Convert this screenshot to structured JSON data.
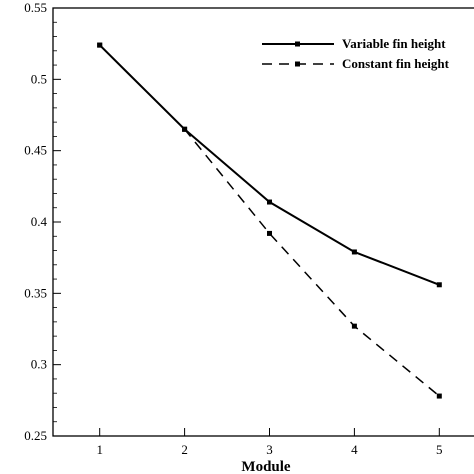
{
  "chart_data": {
    "type": "line",
    "title": "",
    "xlabel": "Module",
    "ylabel": "",
    "categories": [
      1,
      2,
      3,
      4,
      5
    ],
    "x_tick_labels": [
      "1",
      "2",
      "3",
      "4",
      "5"
    ],
    "y_tick_labels": [
      "0.25",
      "0.3",
      "0.35",
      "0.4",
      "0.45",
      "0.5",
      "0.55"
    ],
    "xlim": [
      0.45,
      5.55
    ],
    "ylim": [
      0.25,
      0.55
    ],
    "grid": false,
    "legend_position": "top-right",
    "series": [
      {
        "name": "Variable fin height",
        "values": [
          0.524,
          0.465,
          0.414,
          0.379,
          0.356
        ],
        "style": "solid",
        "color": "#000000"
      },
      {
        "name": "Constant fin height",
        "values": [
          0.524,
          0.465,
          0.392,
          0.327,
          0.278
        ],
        "style": "dashed",
        "color": "#000000"
      }
    ]
  }
}
